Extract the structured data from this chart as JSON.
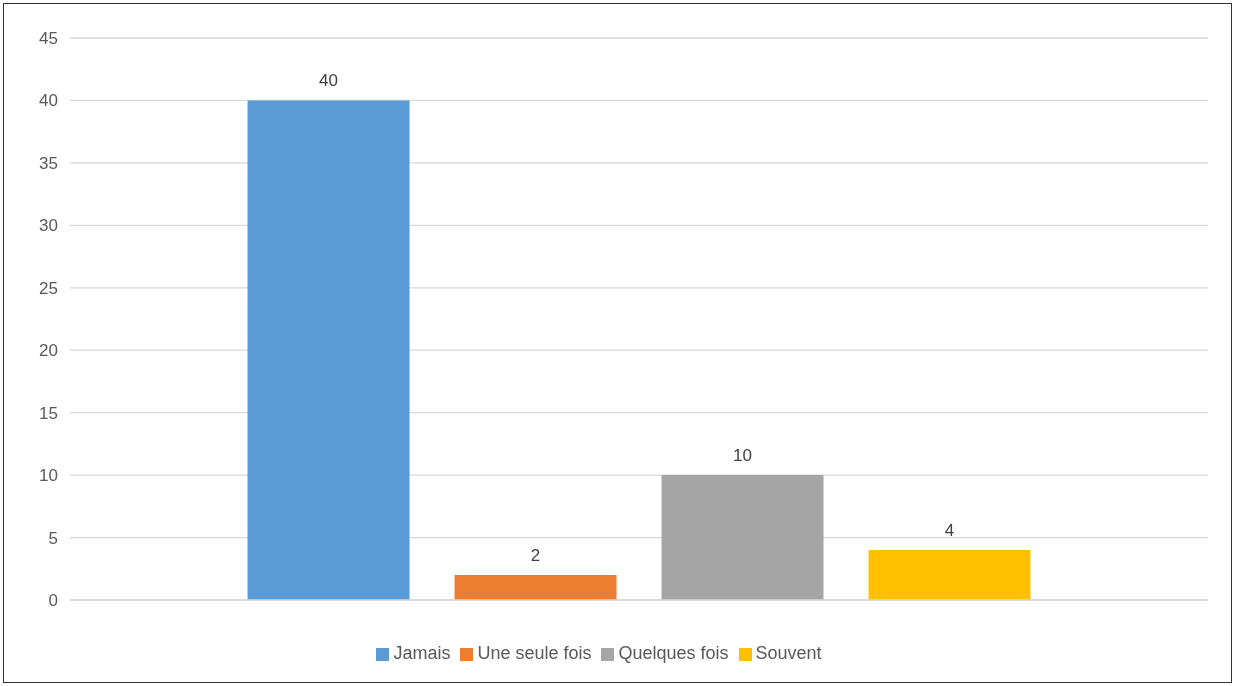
{
  "chart_data": {
    "type": "bar",
    "categories": [
      null
    ],
    "series": [
      {
        "name": "Jamais",
        "color": "#5b9bd5",
        "values": [
          40
        ]
      },
      {
        "name": "Une seule fois",
        "color": "#ed7d31",
        "values": [
          2
        ]
      },
      {
        "name": "Quelques fois",
        "color": "#a5a5a5",
        "values": [
          10
        ]
      },
      {
        "name": "Souvent",
        "color": "#ffc000",
        "values": [
          4
        ]
      }
    ],
    "ylim": [
      0,
      45
    ],
    "yticks": [
      0,
      5,
      10,
      15,
      20,
      25,
      30,
      35,
      40,
      45
    ],
    "grid": "y",
    "legend": "bottom",
    "data_labels": true
  }
}
